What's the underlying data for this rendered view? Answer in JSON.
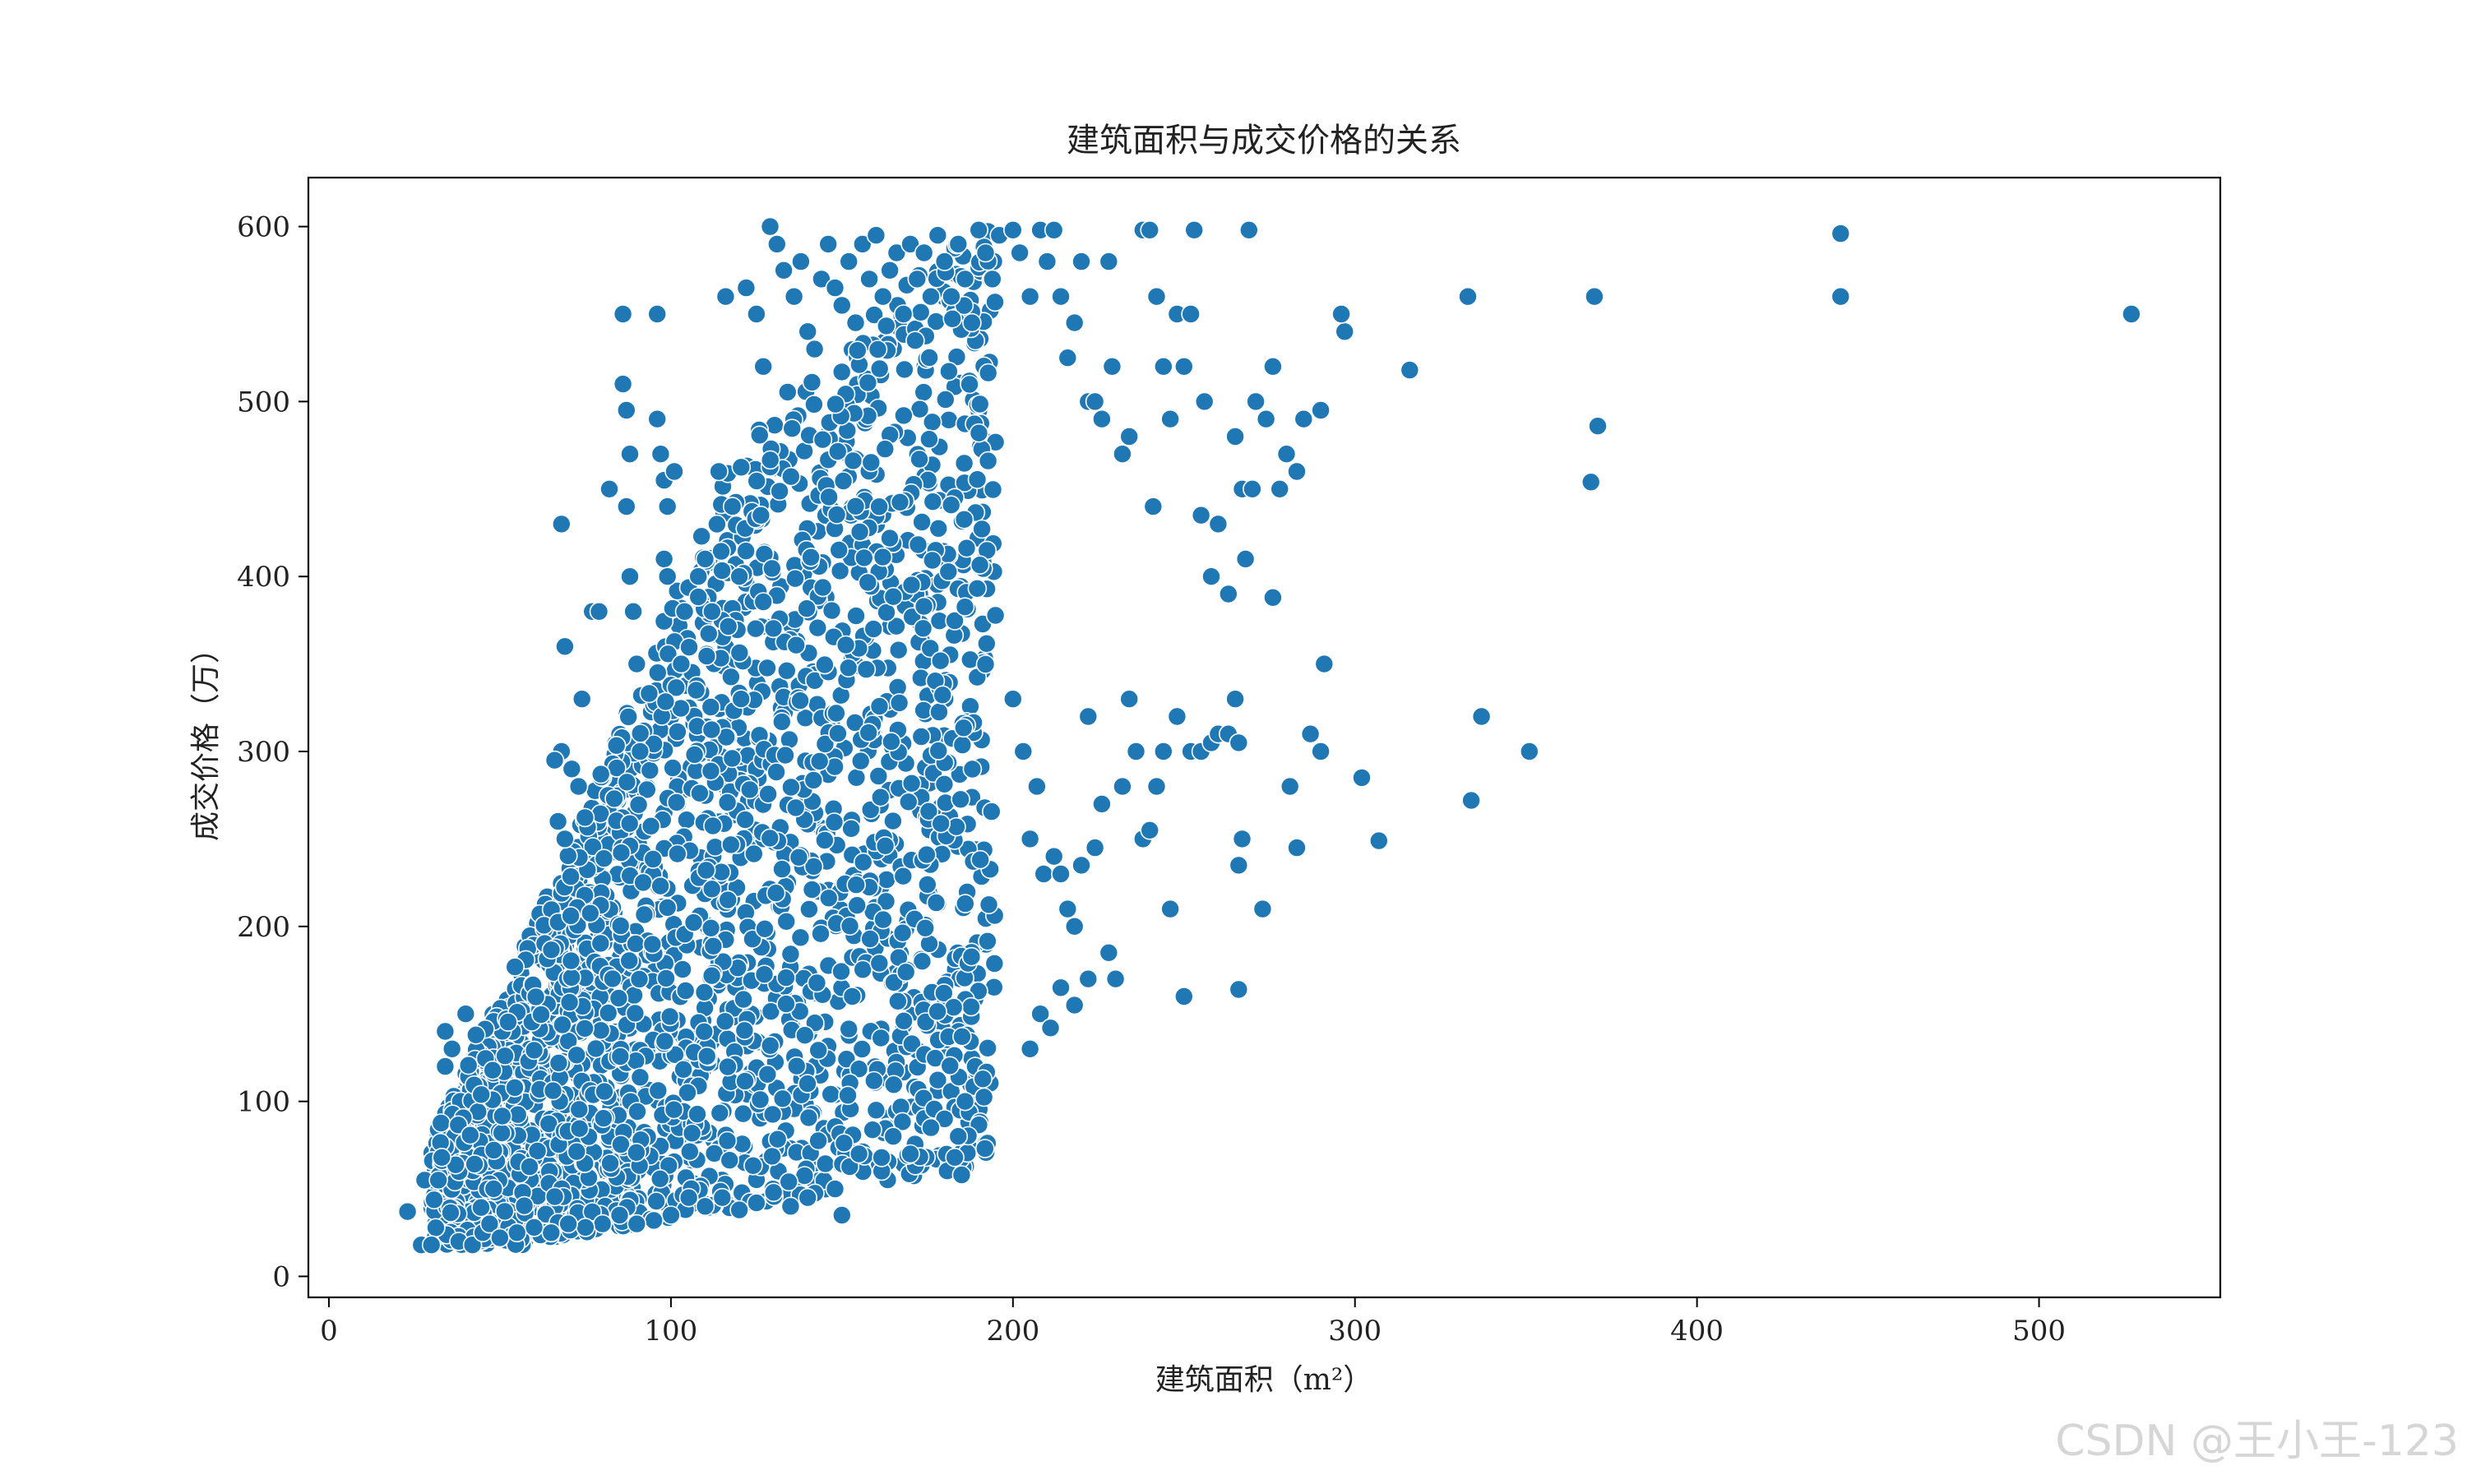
{
  "chart_data": {
    "type": "scatter",
    "title": "建筑面积与成交价格的关系",
    "xlabel": "建筑面积（m²）",
    "ylabel": "成交价格（万）",
    "xlim": [
      -6,
      553
    ],
    "ylim": [
      -12,
      628
    ],
    "x_ticks": [
      "0",
      "100",
      "200",
      "300",
      "400",
      "500"
    ],
    "x_tick_values": [
      0,
      100,
      200,
      300,
      400,
      500
    ],
    "y_ticks": [
      "0",
      "100",
      "200",
      "300",
      "400",
      "500",
      "600"
    ],
    "y_tick_values": [
      0,
      100,
      200,
      300,
      400,
      500,
      600
    ],
    "grid": false,
    "marker_color": "#1f77b4",
    "marker_edge_color": "#ffffff",
    "series": [
      {
        "points": [
          [
            23,
            37
          ],
          [
            27,
            18
          ],
          [
            28,
            55
          ],
          [
            30,
            18
          ],
          [
            32,
            55
          ],
          [
            33,
            68
          ],
          [
            34,
            140
          ],
          [
            34,
            120
          ],
          [
            36,
            130
          ],
          [
            38,
            20
          ],
          [
            40,
            150
          ],
          [
            42,
            18
          ],
          [
            43,
            138
          ],
          [
            45,
            25
          ],
          [
            47,
            30
          ],
          [
            68,
            430
          ],
          [
            69,
            360
          ],
          [
            68,
            300
          ],
          [
            66,
            295
          ],
          [
            67,
            260
          ],
          [
            69,
            250
          ],
          [
            71,
            290
          ],
          [
            73,
            280
          ],
          [
            74,
            330
          ],
          [
            77,
            380
          ],
          [
            79,
            380
          ],
          [
            82,
            450
          ],
          [
            86,
            550
          ],
          [
            86,
            510
          ],
          [
            87,
            495
          ],
          [
            88,
            470
          ],
          [
            87,
            440
          ],
          [
            88,
            400
          ],
          [
            89,
            380
          ],
          [
            90,
            350
          ],
          [
            91,
            300
          ],
          [
            96,
            550
          ],
          [
            96,
            490
          ],
          [
            97,
            470
          ],
          [
            98,
            455
          ],
          [
            99,
            440
          ],
          [
            98,
            410
          ],
          [
            99,
            400
          ],
          [
            101,
            460
          ],
          [
            103,
            350
          ],
          [
            104,
            380
          ],
          [
            108,
            400
          ],
          [
            110,
            410
          ],
          [
            112,
            380
          ],
          [
            114,
            460
          ],
          [
            116,
            560
          ],
          [
            118,
            440
          ],
          [
            120,
            400
          ],
          [
            122,
            565
          ],
          [
            125,
            550
          ],
          [
            127,
            520
          ],
          [
            129,
            600
          ],
          [
            131,
            590
          ],
          [
            133,
            575
          ],
          [
            136,
            560
          ],
          [
            138,
            580
          ],
          [
            140,
            540
          ],
          [
            142,
            530
          ],
          [
            144,
            570
          ],
          [
            146,
            590
          ],
          [
            148,
            565
          ],
          [
            150,
            555
          ],
          [
            152,
            580
          ],
          [
            154,
            545
          ],
          [
            156,
            590
          ],
          [
            158,
            570
          ],
          [
            160,
            595
          ],
          [
            162,
            560
          ],
          [
            164,
            575
          ],
          [
            166,
            585
          ],
          [
            168,
            550
          ],
          [
            170,
            590
          ],
          [
            172,
            570
          ],
          [
            174,
            585
          ],
          [
            176,
            560
          ],
          [
            178,
            595
          ],
          [
            180,
            580
          ],
          [
            182,
            560
          ],
          [
            184,
            590
          ],
          [
            186,
            570
          ],
          [
            188,
            545
          ],
          [
            190,
            598
          ],
          [
            192,
            585
          ],
          [
            194,
            570
          ],
          [
            196,
            595
          ],
          [
            200,
            598
          ],
          [
            202,
            585
          ],
          [
            205,
            560
          ],
          [
            208,
            598
          ],
          [
            210,
            580
          ],
          [
            212,
            598
          ],
          [
            214,
            560
          ],
          [
            216,
            525
          ],
          [
            218,
            545
          ],
          [
            220,
            580
          ],
          [
            222,
            500
          ],
          [
            224,
            500
          ],
          [
            226,
            490
          ],
          [
            228,
            580
          ],
          [
            229,
            520
          ],
          [
            232,
            470
          ],
          [
            234,
            480
          ],
          [
            238,
            598
          ],
          [
            240,
            598
          ],
          [
            241,
            440
          ],
          [
            242,
            560
          ],
          [
            244,
            520
          ],
          [
            246,
            490
          ],
          [
            248,
            550
          ],
          [
            250,
            520
          ],
          [
            252,
            550
          ],
          [
            253,
            598
          ],
          [
            255,
            435
          ],
          [
            256,
            500
          ],
          [
            258,
            400
          ],
          [
            260,
            430
          ],
          [
            263,
            390
          ],
          [
            265,
            480
          ],
          [
            267,
            450
          ],
          [
            268,
            410
          ],
          [
            269,
            598
          ],
          [
            270,
            450
          ],
          [
            271,
            500
          ],
          [
            274,
            490
          ],
          [
            276,
            520
          ],
          [
            278,
            450
          ],
          [
            280,
            470
          ],
          [
            283,
            460
          ],
          [
            285,
            490
          ],
          [
            290,
            495
          ],
          [
            291,
            350
          ],
          [
            297,
            540
          ],
          [
            316,
            518
          ],
          [
            333,
            560
          ],
          [
            370,
            560
          ],
          [
            371,
            486
          ],
          [
            369,
            454
          ],
          [
            442,
            560
          ],
          [
            442,
            596
          ],
          [
            527,
            550
          ],
          [
            200,
            330
          ],
          [
            203,
            300
          ],
          [
            205,
            250
          ],
          [
            207,
            280
          ],
          [
            209,
            230
          ],
          [
            212,
            240
          ],
          [
            214,
            230
          ],
          [
            216,
            210
          ],
          [
            218,
            200
          ],
          [
            220,
            235
          ],
          [
            222,
            320
          ],
          [
            224,
            245
          ],
          [
            226,
            270
          ],
          [
            228,
            185
          ],
          [
            230,
            170
          ],
          [
            232,
            280
          ],
          [
            234,
            330
          ],
          [
            236,
            300
          ],
          [
            238,
            250
          ],
          [
            240,
            255
          ],
          [
            242,
            280
          ],
          [
            244,
            300
          ],
          [
            246,
            210
          ],
          [
            248,
            320
          ],
          [
            250,
            160
          ],
          [
            252,
            300
          ],
          [
            255,
            300
          ],
          [
            258,
            305
          ],
          [
            260,
            310
          ],
          [
            263,
            310
          ],
          [
            265,
            330
          ],
          [
            266,
            305
          ],
          [
            266,
            235
          ],
          [
            267,
            250
          ],
          [
            266,
            164
          ],
          [
            273,
            210
          ],
          [
            276,
            388
          ],
          [
            281,
            280
          ],
          [
            283,
            245
          ],
          [
            287,
            310
          ],
          [
            290,
            300
          ],
          [
            296,
            550
          ],
          [
            302,
            285
          ],
          [
            307,
            249
          ],
          [
            334,
            272
          ],
          [
            337,
            320
          ],
          [
            351,
            300
          ],
          [
            205,
            130
          ],
          [
            208,
            150
          ],
          [
            211,
            142
          ],
          [
            214,
            165
          ],
          [
            218,
            155
          ],
          [
            222,
            170
          ],
          [
            183,
            68
          ],
          [
            184,
            80
          ],
          [
            185,
            58
          ],
          [
            186,
            100
          ],
          [
            180,
            90
          ],
          [
            176,
            85
          ],
          [
            170,
            70
          ],
          [
            165,
            80
          ],
          [
            160,
            95
          ],
          [
            155,
            70
          ],
          [
            150,
            35
          ],
          [
            148,
            50
          ],
          [
            140,
            45
          ],
          [
            135,
            40
          ],
          [
            130,
            48
          ],
          [
            125,
            42
          ],
          [
            120,
            38
          ],
          [
            115,
            45
          ],
          [
            110,
            40
          ],
          [
            100,
            35
          ],
          [
            95,
            32
          ],
          [
            90,
            30
          ],
          [
            85,
            35
          ],
          [
            80,
            30
          ],
          [
            75,
            28
          ],
          [
            70,
            30
          ],
          [
            65,
            25
          ],
          [
            60,
            28
          ],
          [
            55,
            25
          ],
          [
            50,
            22
          ]
        ]
      }
    ],
    "dense_region": {
      "x_center_range": [
        30,
        200
      ],
      "description_hidden": true
    }
  },
  "watermark": "CSDN @王小王-123"
}
